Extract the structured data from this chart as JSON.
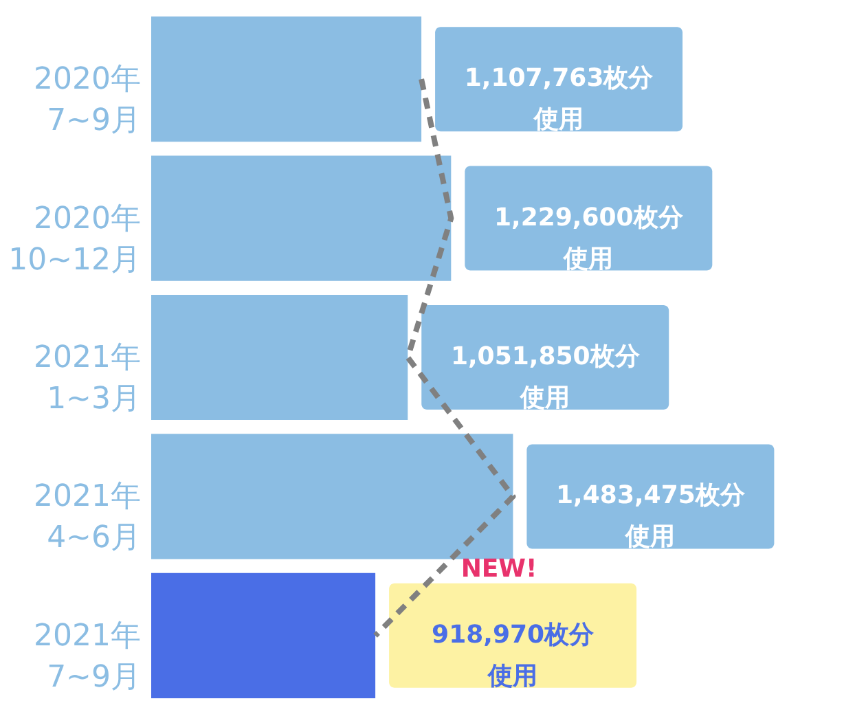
{
  "chart_data": {
    "type": "bar",
    "orientation": "horizontal",
    "categories": [
      "2020年\n7~9月",
      "2020年\n10~12月",
      "2021年\n1~3月",
      "2021年\n4~6月",
      "2021年\n7~9月"
    ],
    "series": [
      {
        "type": "bar",
        "colors": [
          "#8bbde3",
          "#8bbde3",
          "#8bbde3",
          "#8bbde3",
          "#4a6ee6"
        ],
        "values": [
          1107763,
          1229600,
          1051850,
          1483475,
          918970
        ],
        "value_labels": [
          "1,107,763枚分使用",
          "1,229,600枚分使用",
          "1,051,850枚分使用",
          "1,483,475枚分使用",
          "918,970枚分使用"
        ]
      },
      {
        "type": "line",
        "color": "#808080",
        "line_style": "dashed",
        "values": [
          1107763,
          1229600,
          1051850,
          1483475,
          918970
        ]
      }
    ],
    "tick_labels": "y",
    "annotations": [
      "NEW!"
    ]
  }
}
